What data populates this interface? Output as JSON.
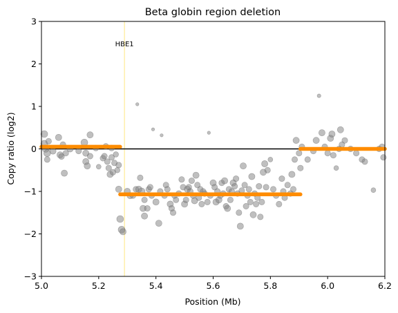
{
  "chart_data": {
    "type": "scatter",
    "title": "Beta globin region deletion",
    "xlabel": "Position (Mb)",
    "ylabel": "Copy ratio (log2)",
    "xlim": [
      5.0,
      6.2
    ],
    "ylim": [
      -3,
      3
    ],
    "xticks": [
      5.0,
      5.2,
      5.4,
      5.6,
      5.8,
      6.0,
      6.2
    ],
    "xtick_labels": [
      "5.0",
      "5.2",
      "5.4",
      "5.6",
      "5.8",
      "6.0",
      "6.2"
    ],
    "yticks": [
      -3,
      -2,
      -1,
      0,
      1,
      2,
      3
    ],
    "ytick_labels": [
      "−3",
      "−2",
      "−1",
      "0",
      "1",
      "2",
      "3"
    ],
    "grid": false,
    "baseline": {
      "y": 0,
      "color": "#000000"
    },
    "annotation": {
      "label": "HBE1",
      "x": 5.29,
      "color": "#ffe680"
    },
    "points_color": "#808080",
    "points": [
      [
        5.01,
        0.35,
        1
      ],
      [
        5.01,
        0.12,
        1
      ],
      [
        5.015,
        0.0,
        1
      ],
      [
        5.02,
        -0.1,
        1
      ],
      [
        5.02,
        -0.25,
        0.8
      ],
      [
        5.025,
        0.18,
        0.8
      ],
      [
        5.04,
        -0.05,
        0.9
      ],
      [
        5.06,
        0.27,
        0.9
      ],
      [
        5.065,
        -0.14,
        0.9
      ],
      [
        5.07,
        -0.18,
        0.8
      ],
      [
        5.075,
        0.1,
        0.8
      ],
      [
        5.08,
        -0.57,
        0.9
      ],
      [
        5.085,
        -0.1,
        0.8
      ],
      [
        5.1,
        0.0,
        0.9
      ],
      [
        5.13,
        -0.05,
        0.8
      ],
      [
        5.15,
        0.15,
        1
      ],
      [
        5.155,
        -0.1,
        0.9
      ],
      [
        5.155,
        -0.3,
        0.9
      ],
      [
        5.16,
        -0.4,
        0.9
      ],
      [
        5.17,
        0.33,
        0.9
      ],
      [
        5.17,
        -0.17,
        0.8
      ],
      [
        5.19,
        0.02,
        0.8
      ],
      [
        5.2,
        -0.42,
        0.6
      ],
      [
        5.215,
        -0.22,
        0.8
      ],
      [
        5.22,
        -0.17,
        0.8
      ],
      [
        5.225,
        0.06,
        0.8
      ],
      [
        5.23,
        -0.3,
        0.8
      ],
      [
        5.235,
        -0.45,
        0.8
      ],
      [
        5.24,
        -0.6,
        0.9
      ],
      [
        5.245,
        -0.2,
        0.8
      ],
      [
        5.245,
        0.02,
        0.8
      ],
      [
        5.25,
        -0.55,
        0.8
      ],
      [
        5.255,
        -0.33,
        0.8
      ],
      [
        5.26,
        -0.13,
        0.7
      ],
      [
        5.265,
        -0.5,
        0.7
      ],
      [
        5.27,
        -0.38,
        0.8
      ],
      [
        5.27,
        -0.95,
        0.9
      ],
      [
        5.275,
        -1.65,
        1
      ],
      [
        5.28,
        -1.9,
        1
      ],
      [
        5.285,
        -1.95,
        0.9
      ],
      [
        5.3,
        -1.0,
        0.9
      ],
      [
        5.31,
        -1.1,
        0.9
      ],
      [
        5.32,
        -1.1,
        0.8
      ],
      [
        5.33,
        -0.95,
        0.8
      ],
      [
        5.335,
        1.05,
        0.3
      ],
      [
        5.34,
        -0.95,
        0.9
      ],
      [
        5.345,
        -0.68,
        0.8
      ],
      [
        5.35,
        -1.0,
        1
      ],
      [
        5.355,
        -1.4,
        0.9
      ],
      [
        5.36,
        -1.58,
        0.9
      ],
      [
        5.36,
        -1.2,
        0.8
      ],
      [
        5.37,
        -1.4,
        0.8
      ],
      [
        5.375,
        -0.95,
        0.8
      ],
      [
        5.38,
        -0.9,
        0.8
      ],
      [
        5.385,
        -1.1,
        0.8
      ],
      [
        5.39,
        0.46,
        0.3
      ],
      [
        5.4,
        -1.25,
        0.9
      ],
      [
        5.41,
        -1.75,
        0.9
      ],
      [
        5.415,
        -1.0,
        0.8
      ],
      [
        5.42,
        0.32,
        0.3
      ],
      [
        5.43,
        -1.1,
        0.8
      ],
      [
        5.435,
        -0.85,
        0.8
      ],
      [
        5.44,
        -0.95,
        0.8
      ],
      [
        5.45,
        -1.3,
        0.9
      ],
      [
        5.455,
        -1.4,
        0.8
      ],
      [
        5.46,
        -1.5,
        0.8
      ],
      [
        5.465,
        -1.1,
        0.8
      ],
      [
        5.47,
        -1.2,
        0.8
      ],
      [
        5.48,
        -1.05,
        0.8
      ],
      [
        5.49,
        -0.72,
        0.8
      ],
      [
        5.495,
        -0.9,
        0.8
      ],
      [
        5.5,
        -1.3,
        0.9
      ],
      [
        5.505,
        -1.2,
        0.8
      ],
      [
        5.51,
        -0.95,
        0.9
      ],
      [
        5.515,
        -0.9,
        0.8
      ],
      [
        5.52,
        -1.0,
        0.8
      ],
      [
        5.525,
        -0.75,
        0.8
      ],
      [
        5.53,
        -1.1,
        0.8
      ],
      [
        5.535,
        -1.22,
        0.9
      ],
      [
        5.54,
        -0.62,
        0.9
      ],
      [
        5.545,
        -0.85,
        0.8
      ],
      [
        5.55,
        -1.15,
        0.8
      ],
      [
        5.555,
        -0.95,
        0.8
      ],
      [
        5.56,
        -1.3,
        0.8
      ],
      [
        5.565,
        -1.0,
        0.8
      ],
      [
        5.57,
        -1.05,
        0.8
      ],
      [
        5.58,
        -1.25,
        0.8
      ],
      [
        5.585,
        0.38,
        0.3
      ],
      [
        5.59,
        -1.1,
        0.8
      ],
      [
        5.6,
        -0.8,
        0.9
      ],
      [
        5.605,
        -0.9,
        0.8
      ],
      [
        5.61,
        -1.25,
        0.9
      ],
      [
        5.615,
        -1.0,
        0.8
      ],
      [
        5.62,
        -1.2,
        0.9
      ],
      [
        5.625,
        -1.1,
        0.8
      ],
      [
        5.63,
        -0.8,
        0.8
      ],
      [
        5.635,
        -1.05,
        0.8
      ],
      [
        5.64,
        -0.75,
        0.9
      ],
      [
        5.645,
        -1.35,
        0.8
      ],
      [
        5.65,
        -1.4,
        0.9
      ],
      [
        5.655,
        -0.95,
        0.8
      ],
      [
        5.66,
        -1.2,
        0.8
      ],
      [
        5.665,
        -1.0,
        0.8
      ],
      [
        5.67,
        -0.8,
        0.9
      ],
      [
        5.675,
        -0.88,
        0.8
      ],
      [
        5.68,
        -0.7,
        0.8
      ],
      [
        5.685,
        -1.05,
        0.8
      ],
      [
        5.69,
        -1.5,
        0.8
      ],
      [
        5.695,
        -1.82,
        0.9
      ],
      [
        5.7,
        -0.98,
        0.8
      ],
      [
        5.705,
        -0.4,
        0.9
      ],
      [
        5.71,
        -0.85,
        0.8
      ],
      [
        5.715,
        -1.35,
        0.8
      ],
      [
        5.72,
        -1.1,
        0.8
      ],
      [
        5.725,
        -0.95,
        0.8
      ],
      [
        5.73,
        -1.25,
        0.8
      ],
      [
        5.735,
        -0.65,
        0.9
      ],
      [
        5.74,
        -1.55,
        0.9
      ],
      [
        5.745,
        -1.05,
        0.8
      ],
      [
        5.75,
        -1.3,
        0.8
      ],
      [
        5.755,
        -1.15,
        0.8
      ],
      [
        5.76,
        -0.88,
        0.8
      ],
      [
        5.765,
        -1.6,
        0.8
      ],
      [
        5.77,
        -1.25,
        0.8
      ],
      [
        5.775,
        -0.55,
        0.9
      ],
      [
        5.78,
        -0.35,
        0.9
      ],
      [
        5.785,
        -0.9,
        0.8
      ],
      [
        5.79,
        -0.5,
        0.8
      ],
      [
        5.8,
        -0.25,
        0.6
      ],
      [
        5.81,
        -0.95,
        0.8
      ],
      [
        5.82,
        -1.1,
        0.8
      ],
      [
        5.83,
        -1.3,
        0.8
      ],
      [
        5.84,
        -0.7,
        0.8
      ],
      [
        5.845,
        -1.0,
        0.8
      ],
      [
        5.85,
        -1.15,
        0.8
      ],
      [
        5.86,
        -0.85,
        0.8
      ],
      [
        5.87,
        -1.05,
        0.8
      ],
      [
        5.875,
        -0.6,
        0.9
      ],
      [
        5.88,
        -0.95,
        0.8
      ],
      [
        5.885,
        -0.25,
        0.8
      ],
      [
        5.89,
        0.2,
        0.9
      ],
      [
        5.9,
        -0.1,
        0.8
      ],
      [
        5.91,
        0.05,
        0.8
      ],
      [
        5.905,
        -0.45,
        0.8
      ],
      [
        5.93,
        -0.25,
        0.8
      ],
      [
        5.95,
        -0.05,
        0.8
      ],
      [
        5.96,
        0.2,
        0.9
      ],
      [
        5.97,
        1.25,
        0.4
      ],
      [
        5.98,
        0.38,
        0.9
      ],
      [
        5.99,
        0.05,
        0.8
      ],
      [
        6.0,
        -0.1,
        0.8
      ],
      [
        6.01,
        0.25,
        0.9
      ],
      [
        6.015,
        0.35,
        0.9
      ],
      [
        6.02,
        -0.15,
        0.8
      ],
      [
        6.03,
        -0.45,
        0.6
      ],
      [
        6.04,
        0.0,
        0.8
      ],
      [
        6.045,
        0.45,
        0.9
      ],
      [
        6.05,
        0.1,
        0.8
      ],
      [
        6.06,
        0.2,
        0.8
      ],
      [
        6.08,
        0.0,
        0.8
      ],
      [
        6.1,
        -0.1,
        0.8
      ],
      [
        6.12,
        -0.25,
        0.8
      ],
      [
        6.13,
        -0.3,
        0.8
      ],
      [
        6.16,
        -0.97,
        0.6
      ],
      [
        6.18,
        0.0,
        0.8
      ],
      [
        6.19,
        0.05,
        0.8
      ],
      [
        6.195,
        -0.2,
        0.8
      ]
    ],
    "segments_color": "#ff8c00",
    "segments": [
      {
        "x0": 5.0,
        "x1": 5.275,
        "y": 0.05
      },
      {
        "x0": 5.275,
        "x1": 5.905,
        "y": -1.07
      },
      {
        "x0": 5.905,
        "x1": 6.2,
        "y": 0.0
      }
    ]
  }
}
